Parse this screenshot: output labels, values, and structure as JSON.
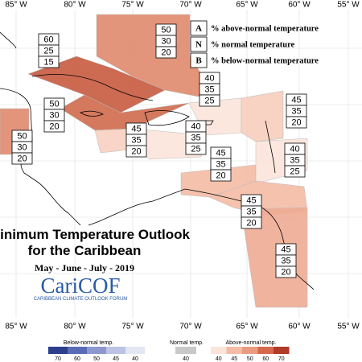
{
  "title": "Minimum Temperature Outlook",
  "subtitle": "for the Caribbean",
  "period": "May - June - July - 2019",
  "logo": {
    "name": "CariCOF",
    "tagline": "CARIBBEAN CLIMATE OUTLOOK FORUM"
  },
  "longitudes": [
    "85° W",
    "80° W",
    "75° W",
    "70° W",
    "65° W",
    "60° W",
    "55° W"
  ],
  "key": [
    {
      "letter": "A",
      "text": "% above-normal temperature"
    },
    {
      "letter": "N",
      "text": "% normal temperature"
    },
    {
      "letter": "B",
      "text": "% below-normal temperature"
    }
  ],
  "regions": [
    {
      "values": [
        60,
        25,
        15
      ],
      "color": "#c85a3f"
    },
    {
      "values": [
        50,
        30,
        20
      ],
      "color": "#e08a6d"
    },
    {
      "values": [
        50,
        30,
        20
      ],
      "color": "#cf6a4c"
    },
    {
      "values": [
        50,
        30,
        20
      ],
      "color": "#e08a6d"
    },
    {
      "values": [
        40,
        35,
        25
      ],
      "color": "#fbe4da"
    },
    {
      "values": [
        45,
        35,
        20
      ],
      "color": "#f7d0c0"
    },
    {
      "values": [
        40,
        35,
        25
      ],
      "color": "#fbe4da"
    },
    {
      "values": [
        45,
        35,
        20
      ],
      "color": "#f7cdbd"
    },
    {
      "values": [
        45,
        35,
        20
      ],
      "color": "#f4bba5"
    },
    {
      "values": [
        40,
        35,
        25
      ],
      "color": "#fbe4da"
    },
    {
      "values": [
        45,
        35,
        20
      ],
      "color": "#f4bba5"
    },
    {
      "values": [
        45,
        35,
        20
      ],
      "color": "#eeab94"
    }
  ],
  "legend": {
    "below": {
      "title": "Below-normal temp.",
      "labels": [
        70,
        60,
        50,
        45,
        40
      ],
      "colors": [
        "#2d3f8c",
        "#5a6cb5",
        "#8c98cf",
        "#bcc3e4",
        "#e3e6f3"
      ]
    },
    "normal": {
      "title": "Normal temp.",
      "labels": [
        40
      ],
      "colors": [
        "#c8c8c8"
      ]
    },
    "above": {
      "title": "Above-normal temp.",
      "labels": [
        40,
        45,
        50,
        60,
        70
      ],
      "colors": [
        "#fbe4da",
        "#f4bba5",
        "#e99b80",
        "#d6694c",
        "#b23a28"
      ]
    }
  }
}
